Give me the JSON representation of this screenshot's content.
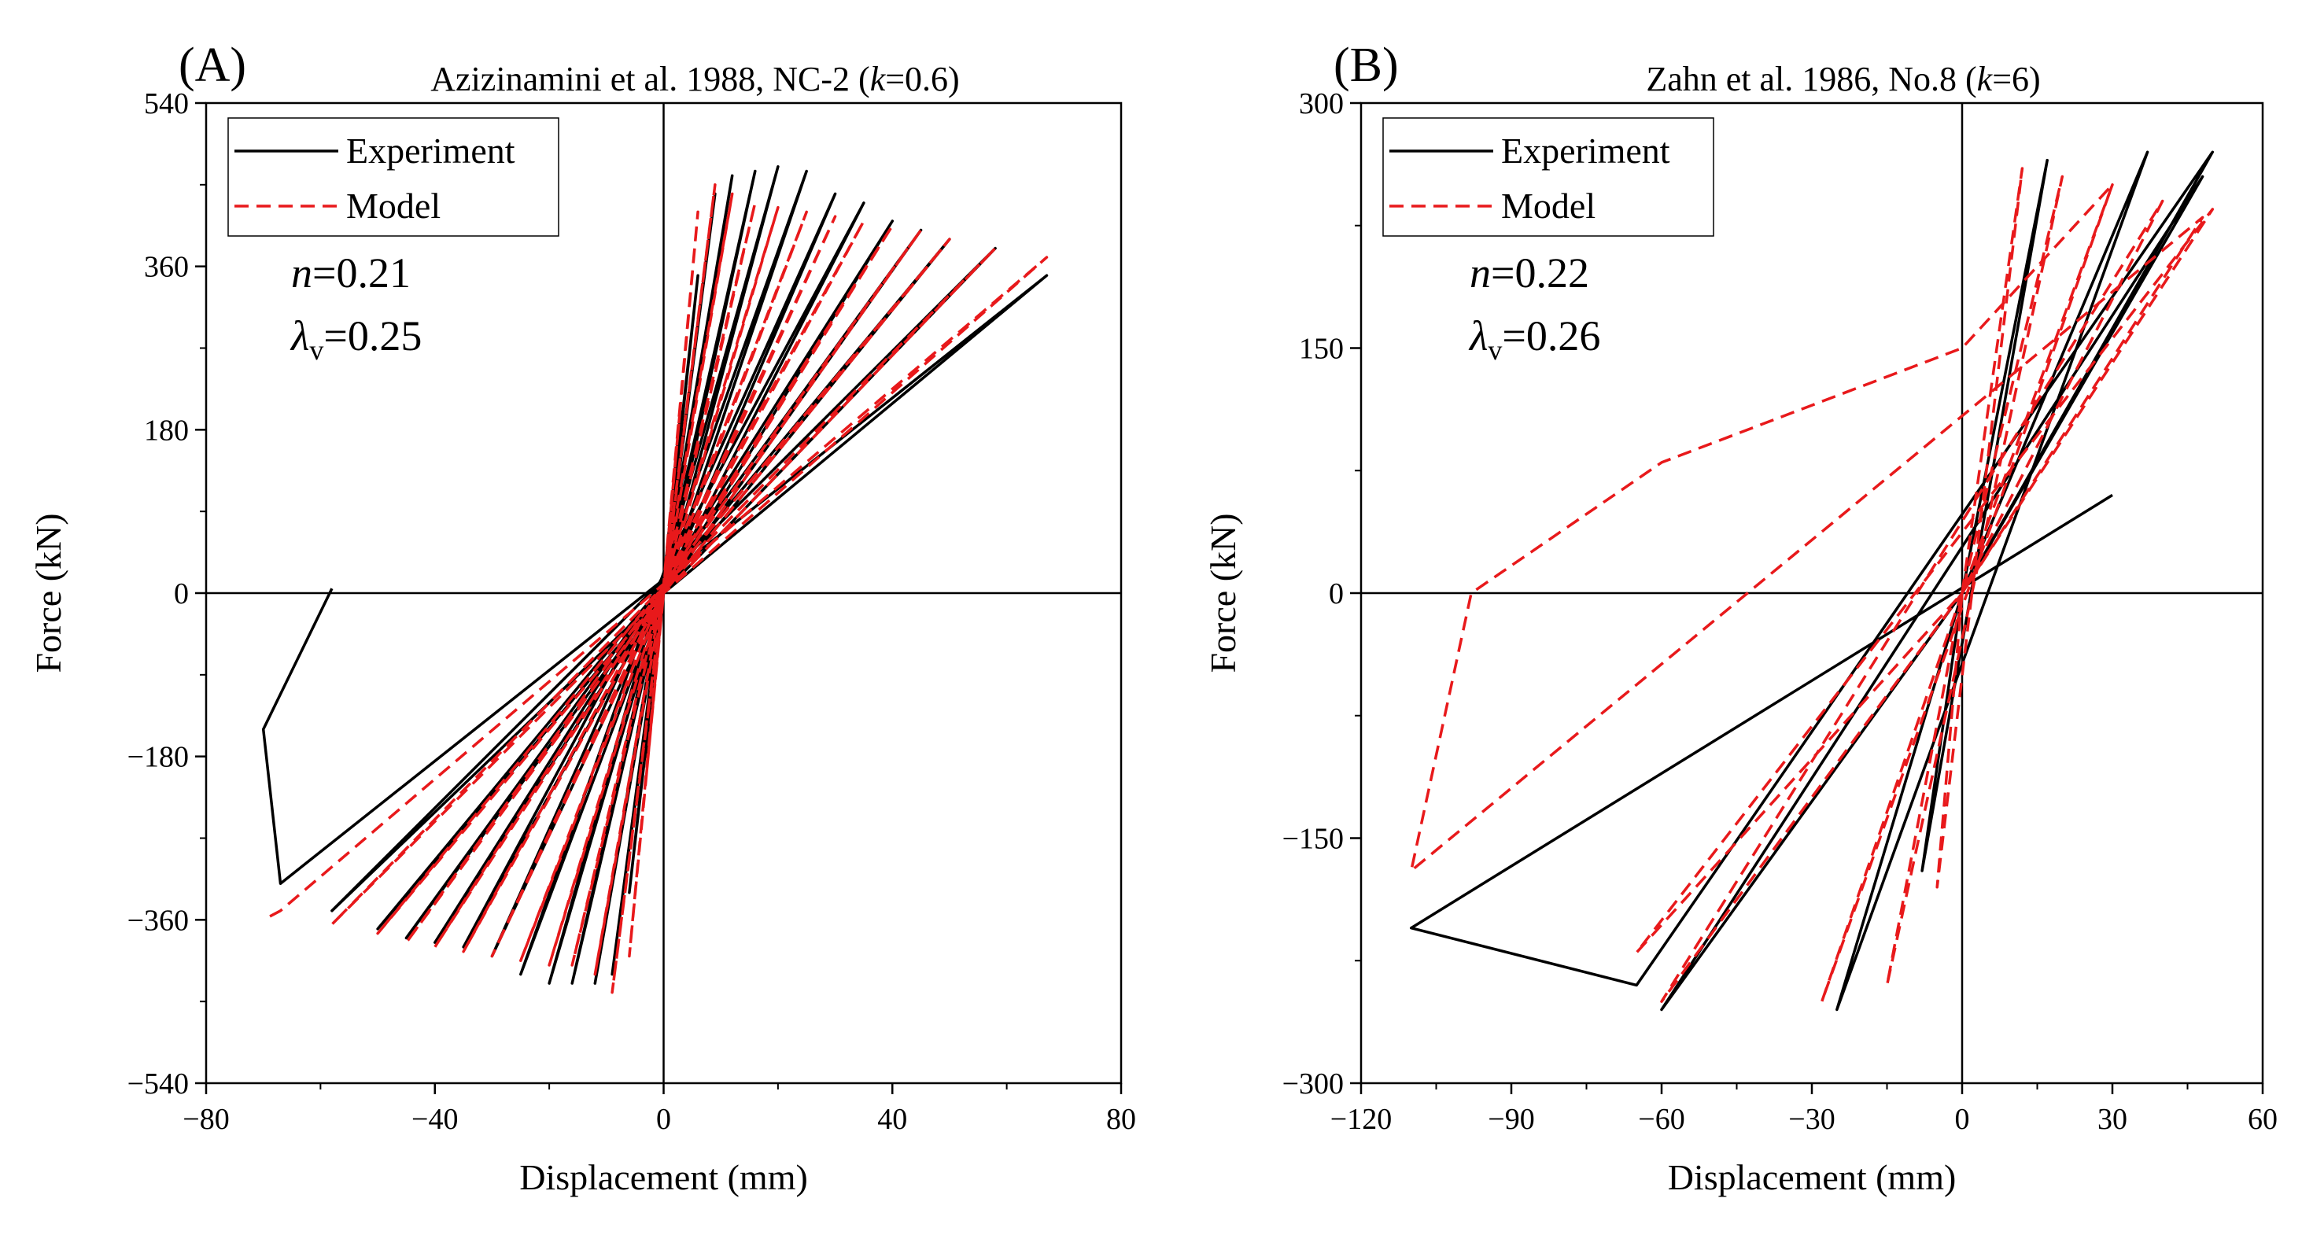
{
  "chart_data": [
    {
      "type": "line",
      "panel_label": "(A)",
      "title_parts": [
        "Azizinamini et al. 1988, NC-2 (",
        "k",
        "=0.6)"
      ],
      "xlabel": "Displacement (mm)",
      "ylabel": "Force (kN)",
      "xlim": [
        -80,
        80
      ],
      "ylim": [
        -540,
        540
      ],
      "xticks": [
        -80,
        -40,
        0,
        40,
        80
      ],
      "yticks": [
        -540,
        -360,
        -180,
        0,
        180,
        360,
        540
      ],
      "xtick_labels": [
        "−80",
        "−40",
        "0",
        "40",
        "80"
      ],
      "ytick_labels": [
        "−540",
        "−360",
        "−180",
        "0",
        "180",
        "360",
        "540"
      ],
      "grid": false,
      "legend_position": "top-left",
      "params": [
        {
          "symbol": "n",
          "value": "=0.21"
        },
        {
          "symbol": "λ",
          "subscript": "v",
          "value": "=0.25"
        }
      ],
      "series": [
        {
          "name": "Experiment",
          "color": "#000000",
          "dash": "solid",
          "x": [
            0,
            3,
            -3,
            0,
            6,
            -6,
            0,
            9,
            -9,
            0,
            12,
            -12,
            0,
            16,
            -16,
            0,
            20,
            -20,
            0,
            25,
            -25,
            0,
            30,
            -30,
            0,
            35,
            -35,
            0,
            40,
            -40,
            0,
            45,
            -45,
            0,
            50,
            -50,
            0,
            58,
            -58,
            0,
            67,
            -67,
            -70,
            -58
          ],
          "y": [
            0,
            200,
            -180,
            0,
            350,
            -330,
            0,
            440,
            -420,
            0,
            460,
            -430,
            0,
            465,
            -430,
            0,
            470,
            -430,
            0,
            465,
            -420,
            0,
            440,
            -400,
            0,
            430,
            -390,
            0,
            410,
            -385,
            0,
            400,
            -380,
            0,
            390,
            -370,
            0,
            380,
            -350,
            0,
            350,
            -320,
            -150,
            5
          ]
        },
        {
          "name": "Model",
          "color": "#e8191b",
          "dash": "dashed",
          "x": [
            0,
            3,
            -3,
            0,
            6,
            -6,
            0,
            9,
            -9,
            0,
            12,
            -12,
            0,
            16,
            -16,
            0,
            20,
            -20,
            0,
            25,
            -25,
            0,
            30,
            -30,
            0,
            35,
            -35,
            0,
            40,
            -40,
            0,
            45,
            -45,
            0,
            50,
            -50,
            0,
            58,
            -58,
            0,
            67,
            -67,
            -70
          ],
          "y": [
            0,
            210,
            -200,
            0,
            420,
            -400,
            0,
            450,
            -440,
            0,
            440,
            -420,
            0,
            430,
            -410,
            0,
            425,
            -410,
            0,
            420,
            -405,
            0,
            415,
            -400,
            0,
            410,
            -395,
            0,
            405,
            -390,
            0,
            400,
            -385,
            0,
            390,
            -375,
            0,
            380,
            -365,
            0,
            370,
            -350,
            -360
          ]
        }
      ]
    },
    {
      "type": "line",
      "panel_label": "(B)",
      "title_parts": [
        "Zahn et al. 1986, No.8 (",
        "k",
        "=6)"
      ],
      "xlabel": "Displacement (mm)",
      "ylabel": "Force (kN)",
      "xlim": [
        -120,
        60
      ],
      "ylim": [
        -300,
        300
      ],
      "xticks": [
        -120,
        -90,
        -60,
        -30,
        0,
        30,
        60
      ],
      "yticks": [
        -300,
        -150,
        0,
        150,
        300
      ],
      "xtick_labels": [
        "−120",
        "−90",
        "−60",
        "−30",
        "0",
        "30",
        "60"
      ],
      "ytick_labels": [
        "−300",
        "−150",
        "0",
        "150",
        "300"
      ],
      "grid": false,
      "legend_position": "top-left",
      "params": [
        {
          "symbol": "n",
          "value": "=0.22"
        },
        {
          "symbol": "λ",
          "subscript": "v",
          "value": "=0.26"
        }
      ],
      "series": [
        {
          "name": "Experiment",
          "color": "#000000",
          "dash": "solid",
          "x": [
            0,
            17,
            17,
            -8,
            -8,
            0,
            37,
            37,
            -25,
            -25,
            0,
            48,
            48,
            -60,
            -60,
            0,
            50,
            50,
            -65,
            -65,
            -110,
            -110,
            30,
            30
          ],
          "y": [
            0,
            265,
            265,
            -170,
            -170,
            0,
            270,
            270,
            -255,
            -255,
            0,
            255,
            255,
            -255,
            -255,
            0,
            270,
            270,
            -240,
            -240,
            -205,
            -205,
            60,
            60
          ]
        },
        {
          "name": "Model",
          "color": "#e8191b",
          "dash": "dashed",
          "x": [
            0,
            12,
            -5,
            0,
            20,
            -15,
            0,
            30,
            -28,
            0,
            40,
            -60,
            0,
            50,
            -65,
            0,
            48,
            -110,
            -98,
            -60,
            0,
            30
          ],
          "y": [
            0,
            260,
            -180,
            0,
            255,
            -240,
            0,
            250,
            -250,
            0,
            240,
            -250,
            0,
            235,
            -220,
            0,
            230,
            -170,
            0,
            80,
            150,
            250
          ]
        }
      ]
    }
  ]
}
